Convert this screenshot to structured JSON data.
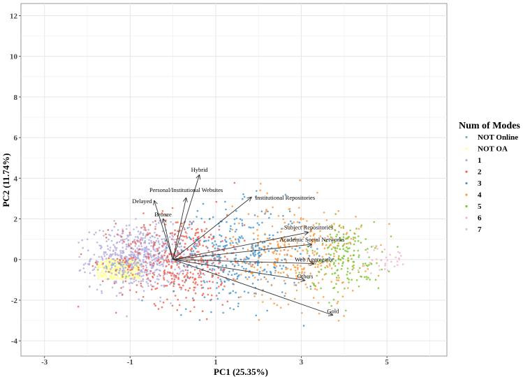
{
  "chart_data": {
    "type": "scatter",
    "subtype": "pca-biplot",
    "xlabel": "PC1 (25.35%)",
    "ylabel": "PC2 (11.74%)",
    "xlim": [
      -3.55,
      6.4
    ],
    "ylim": [
      -4.75,
      12.6
    ],
    "xticks": [
      -3,
      -1,
      1,
      3,
      5
    ],
    "yticks": [
      -4,
      -2,
      0,
      2,
      4,
      6,
      8,
      10,
      12
    ],
    "grid": true,
    "legend": {
      "title": "Num of Modes",
      "placement": "right",
      "entries": [
        {
          "label": "NOT Online",
          "color": "#66c2a5"
        },
        {
          "label": "NOT OA",
          "color": "#ffff99"
        },
        {
          "label": "1",
          "color": "#b3aede"
        },
        {
          "label": "2",
          "color": "#f4604f"
        },
        {
          "label": "3",
          "color": "#4a98d0"
        },
        {
          "label": "4",
          "color": "#fb9a3c"
        },
        {
          "label": "5",
          "color": "#7cc62e"
        },
        {
          "label": "6",
          "color": "#f6b3cf"
        },
        {
          "label": "7",
          "color": "#d0d0d0"
        }
      ]
    },
    "series_clusters": [
      {
        "name": "NOT OA",
        "shape": "box",
        "x_range": [
          -1.77,
          -0.76
        ],
        "y_range": [
          -0.96,
          0.0
        ],
        "n": 400
      },
      {
        "name": "1",
        "center": [
          -0.8,
          0.1
        ],
        "spread": [
          0.55,
          0.75
        ],
        "n": 650
      },
      {
        "name": "2",
        "center": [
          0.2,
          0.0
        ],
        "spread": [
          0.75,
          1.1
        ],
        "n": 450
      },
      {
        "name": "3",
        "center": [
          1.5,
          0.2
        ],
        "spread": [
          0.75,
          1.2
        ],
        "n": 350
      },
      {
        "name": "4",
        "center": [
          2.9,
          0.3
        ],
        "spread": [
          0.75,
          1.25
        ],
        "n": 300
      },
      {
        "name": "5",
        "center": [
          4.0,
          0.1
        ],
        "spread": [
          0.45,
          0.9
        ],
        "n": 170
      },
      {
        "name": "6",
        "center": [
          5.0,
          0.0
        ],
        "spread": [
          0.25,
          0.3
        ],
        "n": 30
      },
      {
        "name": "7",
        "center": [
          4.8,
          0.0
        ],
        "spread": [
          0.2,
          0.3
        ],
        "n": 3
      },
      {
        "name": "NOT Online",
        "center": [
          -1.3,
          -0.4
        ],
        "spread": [
          0.2,
          0.2
        ],
        "n": 5
      }
    ],
    "loadings": [
      {
        "label": "Hybrid",
        "x": 0.62,
        "y": 4.18
      },
      {
        "label": "Personal/Institutional Websites",
        "x": 0.31,
        "y": 3.05
      },
      {
        "label": "Delayed",
        "x": -0.44,
        "y": 2.91
      },
      {
        "label": "Bronze",
        "x": -0.23,
        "y": 2.02
      },
      {
        "label": "Institutional Repositories",
        "x": 1.84,
        "y": 3.08
      },
      {
        "label": "Subject Repositories",
        "x": 3.17,
        "y": 1.34
      },
      {
        "label": "Academic Social Networks",
        "x": 3.25,
        "y": 0.75
      },
      {
        "label": "Web Aggregator",
        "x": 3.3,
        "y": -0.2
      },
      {
        "label": "Others",
        "x": 3.09,
        "y": -1.03
      },
      {
        "label": "Gold",
        "x": 3.74,
        "y": -2.74
      }
    ]
  }
}
